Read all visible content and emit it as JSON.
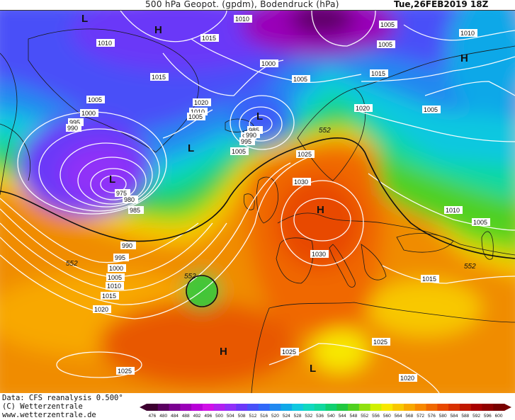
{
  "header": {
    "title": "500 hPa Geopot. (gpdm), Bodendruck (hPa)",
    "date": "Tue,26FEB2019 18Z"
  },
  "footer": {
    "line1": "Data: CFS reanalysis 0.500°",
    "line2": "(C) Wetterzentrale",
    "line3": "www.wetterzentrale.de"
  },
  "colorbar": {
    "ticks": [
      "476",
      "480",
      "484",
      "488",
      "492",
      "496",
      "500",
      "504",
      "508",
      "512",
      "516",
      "520",
      "524",
      "528",
      "532",
      "536",
      "540",
      "544",
      "548",
      "552",
      "556",
      "560",
      "564",
      "568",
      "572",
      "576",
      "580",
      "584",
      "588",
      "592",
      "596",
      "600"
    ],
    "colors": [
      "#3d0030",
      "#5a0060",
      "#7a0090",
      "#9a00b8",
      "#b800d8",
      "#d010e8",
      "#b020f0",
      "#9030f8",
      "#6a38f8",
      "#4850f8",
      "#3068f8",
      "#2088f0",
      "#10a8e8",
      "#10c8e0",
      "#10d8c0",
      "#10d8a0",
      "#10d070",
      "#20c840",
      "#50d020",
      "#90e010",
      "#d0f000",
      "#f8e800",
      "#f8c800",
      "#f8a800",
      "#f88800",
      "#f06800",
      "#e84800",
      "#d83000",
      "#c01800",
      "#a80000",
      "#900000",
      "#780000"
    ]
  },
  "map_labels": {
    "pressure_centers": [
      {
        "id": "l-greenland-north",
        "text": "L"
      },
      {
        "id": "h-arctic",
        "text": "H"
      },
      {
        "id": "h-siberia",
        "text": "H"
      },
      {
        "id": "l-norway-sea",
        "text": "L"
      },
      {
        "id": "l-atlantic-mid",
        "text": "L"
      },
      {
        "id": "l-atlantic-south",
        "text": "L"
      },
      {
        "id": "h-central-europe",
        "text": "H"
      },
      {
        "id": "h-azores",
        "text": "H"
      },
      {
        "id": "l-africa",
        "text": "L"
      }
    ],
    "isobars": [
      "1010",
      "1005",
      "1010",
      "1015",
      "1005",
      "1010",
      "1000",
      "1005",
      "1015",
      "1015",
      "1005",
      "1020",
      "1020",
      "1010",
      "1005",
      "1005",
      "1000",
      "995",
      "990",
      "985",
      "985",
      "990",
      "995",
      "1005",
      "975",
      "980",
      "985",
      "1025",
      "1030",
      "1030",
      "1010",
      "1005",
      "990",
      "995",
      "1000",
      "1005",
      "1010",
      "1015",
      "1020",
      "1015",
      "1025",
      "1025",
      "1020",
      "1025"
    ],
    "contour_552": [
      "552",
      "552",
      "552",
      "552"
    ]
  }
}
